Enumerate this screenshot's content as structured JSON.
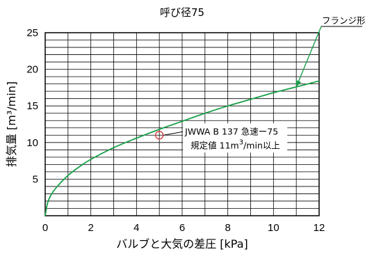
{
  "chart_data": {
    "type": "line",
    "title": "呼び径75",
    "xlabel": "バルブと大気の差圧 [kPa]",
    "ylabel": "排気量 [m³/min]",
    "xlim": [
      0,
      12
    ],
    "ylim": [
      0,
      25
    ],
    "xticks": [
      "0",
      "2",
      "4",
      "6",
      "8",
      "10",
      "12"
    ],
    "yticks": [
      "5",
      "10",
      "15",
      "20",
      "25"
    ],
    "x_minor_step": 1,
    "y_minor_step": 1,
    "grid": true,
    "series": [
      {
        "name": "フランジ形",
        "color": "#1aa04a",
        "x": [
          0,
          0.1,
          0.25,
          0.5,
          1,
          1.5,
          2,
          3,
          4,
          5,
          6,
          7,
          8,
          9,
          10,
          11,
          12
        ],
        "y": [
          0,
          1.7,
          2.8,
          3.9,
          5.5,
          6.7,
          7.7,
          9.3,
          10.6,
          11.8,
          12.9,
          14.0,
          15.0,
          15.9,
          16.8,
          17.6,
          18.4
        ]
      }
    ],
    "marker": {
      "x": 5,
      "y": 11,
      "color": "#e0252a",
      "label_line1": "JWWA B 137 急速ー75",
      "label_line2": "規定値 11m",
      "label_sup": "3",
      "label_line2_suffix": "/min以上"
    },
    "series_label": {
      "text": "フランジ形",
      "x": 11,
      "y": 17.6
    }
  }
}
